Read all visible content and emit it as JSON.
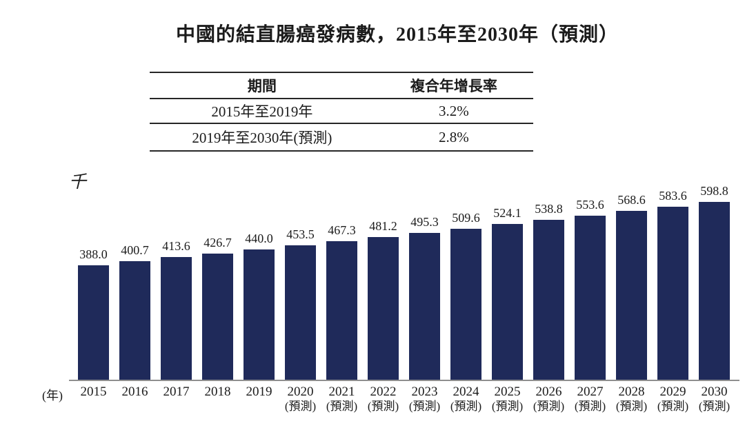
{
  "title": "中國的結直腸癌發病數，2015年至2030年（預測）",
  "table": {
    "headers": {
      "period": "期間",
      "cagr": "複合年增長率"
    },
    "rows": [
      {
        "period": "2015年至2019年",
        "cagr": "3.2%"
      },
      {
        "period": "2019年至2030年(預測)",
        "cagr": "2.8%"
      }
    ]
  },
  "chart_data": {
    "type": "bar",
    "title": "中國的結直腸癌發病數，2015年至2030年（預測）",
    "unit_label": "千",
    "x_axis_unit": "(年)",
    "forecast_suffix": "(預測)",
    "categories": [
      "2015",
      "2016",
      "2017",
      "2018",
      "2019",
      "2020",
      "2021",
      "2022",
      "2023",
      "2024",
      "2025",
      "2026",
      "2027",
      "2028",
      "2029",
      "2030"
    ],
    "forecast_years": [
      "2020",
      "2021",
      "2022",
      "2023",
      "2024",
      "2025",
      "2026",
      "2027",
      "2028",
      "2029",
      "2030"
    ],
    "values": [
      388.0,
      400.7,
      413.6,
      426.7,
      440.0,
      453.5,
      467.3,
      481.2,
      495.3,
      509.6,
      524.1,
      538.8,
      553.6,
      568.6,
      583.6,
      598.8
    ],
    "bar_color": "#1f2a5a",
    "axis_color": "#8f8f8f",
    "ylim": [
      0,
      620
    ],
    "grid": false,
    "legend": "none"
  }
}
